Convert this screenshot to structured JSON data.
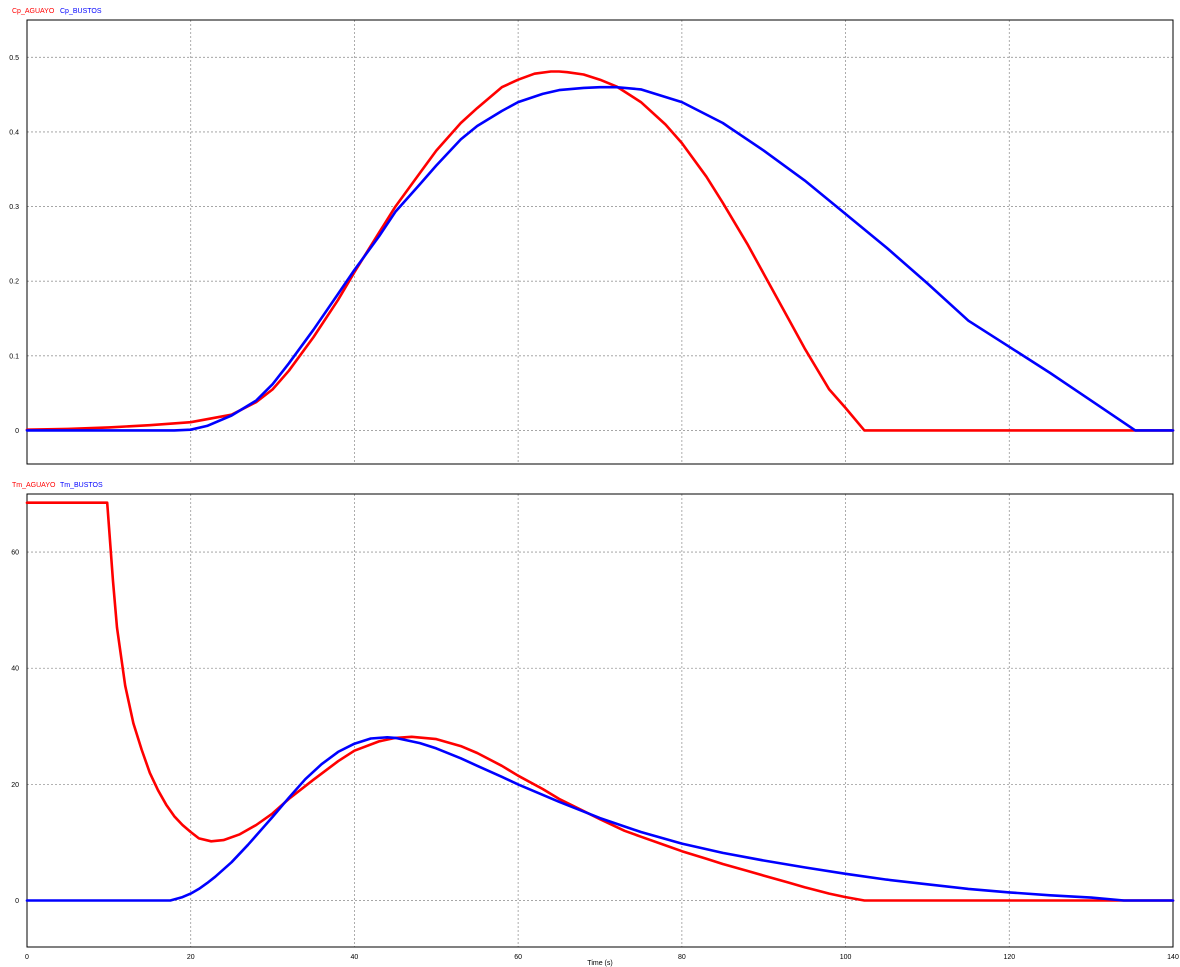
{
  "colors": {
    "red": "#ff0000",
    "blue": "#0000ff",
    "grid": "#999999",
    "frame": "#000000",
    "background": "#ffffff"
  },
  "chart_data": [
    {
      "type": "line",
      "legend": [
        "Cp_AGUAYO",
        "Cp_BUSTOS"
      ],
      "legend_placement": "top-left",
      "xlabel": "",
      "ylabel": "",
      "xlim": [
        0,
        140
      ],
      "ylim": [
        -0.045,
        0.55
      ],
      "x_ticks": [
        20,
        40,
        60,
        80,
        100,
        120
      ],
      "y_ticks": [
        0,
        0.1,
        0.2,
        0.3,
        0.4,
        0.5
      ],
      "y_tick_labels": [
        "0",
        "0.1",
        "0.2",
        "0.3",
        "0.4",
        "0.5"
      ],
      "grid": true,
      "series": [
        {
          "name": "Cp_AGUAYO",
          "color": "#ff0000",
          "x": [
            0,
            5,
            10,
            15,
            20,
            25,
            28,
            30,
            32,
            35,
            38,
            40,
            43,
            45,
            48,
            50,
            53,
            55,
            58,
            60,
            62,
            64,
            65,
            66,
            68,
            70,
            72,
            75,
            78,
            80,
            83,
            85,
            88,
            90,
            93,
            95,
            98,
            100,
            102.3,
            110,
            120,
            130,
            135,
            140
          ],
          "y": [
            0.001,
            0.002,
            0.004,
            0.007,
            0.011,
            0.021,
            0.038,
            0.055,
            0.08,
            0.125,
            0.175,
            0.212,
            0.265,
            0.3,
            0.345,
            0.375,
            0.412,
            0.432,
            0.46,
            0.47,
            0.478,
            0.481,
            0.481,
            0.48,
            0.477,
            0.47,
            0.461,
            0.44,
            0.41,
            0.385,
            0.34,
            0.305,
            0.25,
            0.21,
            0.15,
            0.11,
            0.055,
            0.03,
            0.0,
            0.0,
            0.0,
            0.0,
            0.0,
            0.0
          ]
        },
        {
          "name": "Cp_BUSTOS",
          "color": "#0000ff",
          "x": [
            0,
            5,
            10,
            15,
            18,
            20,
            22,
            25,
            28,
            30,
            32,
            35,
            38,
            40,
            43,
            45,
            48,
            50,
            53,
            55,
            58,
            60,
            63,
            65,
            68,
            70,
            72,
            75,
            80,
            85,
            90,
            95,
            100,
            105,
            110,
            115,
            120,
            125,
            130,
            135.4,
            140
          ],
          "y": [
            0.0,
            0.0,
            0.0,
            0.0,
            0.0,
            0.001,
            0.006,
            0.02,
            0.04,
            0.062,
            0.09,
            0.135,
            0.183,
            0.215,
            0.26,
            0.293,
            0.33,
            0.355,
            0.39,
            0.408,
            0.428,
            0.44,
            0.451,
            0.456,
            0.459,
            0.46,
            0.46,
            0.457,
            0.44,
            0.412,
            0.375,
            0.335,
            0.29,
            0.245,
            0.197,
            0.147,
            0.112,
            0.077,
            0.04,
            0.0,
            0.0
          ]
        }
      ]
    },
    {
      "type": "line",
      "legend": [
        "Tm_AGUAYO",
        "Tm_BUSTOS"
      ],
      "legend_placement": "top-left",
      "xlabel": "Time (s)",
      "ylabel": "",
      "xlim": [
        0,
        140
      ],
      "ylim": [
        -8,
        70
      ],
      "x_ticks": [
        0,
        20,
        40,
        60,
        80,
        100,
        120,
        140
      ],
      "y_ticks": [
        0,
        20,
        40,
        60
      ],
      "y_tick_labels": [
        "0",
        "20",
        "40",
        "60"
      ],
      "grid": true,
      "series": [
        {
          "name": "Tm_AGUAYO",
          "color": "#ff0000",
          "x": [
            0,
            5,
            9.8,
            10.5,
            11,
            12,
            13,
            14,
            15,
            16,
            17,
            18,
            19,
            20,
            21,
            22.5,
            24,
            26,
            28,
            30,
            32,
            35,
            38,
            40,
            43,
            45,
            47,
            50,
            53,
            55,
            58,
            60,
            63,
            65,
            68,
            70,
            73,
            75,
            78,
            80,
            83,
            85,
            88,
            90,
            93,
            95,
            98,
            100,
            102.3,
            110,
            120,
            130,
            135,
            140
          ],
          "y": [
            68.5,
            68.5,
            68.5,
            55,
            47,
            37,
            30.5,
            26,
            22,
            19,
            16.5,
            14.5,
            13,
            11.8,
            10.7,
            10.2,
            10.4,
            11.4,
            13,
            15,
            17.5,
            20.8,
            24,
            25.8,
            27.4,
            28,
            28.2,
            27.8,
            26.6,
            25.4,
            23.2,
            21.5,
            19.2,
            17.5,
            15.4,
            14,
            12,
            11,
            9.5,
            8.5,
            7.2,
            6.3,
            5.1,
            4.3,
            3.1,
            2.3,
            1.2,
            0.6,
            0.0,
            0.0,
            0.0,
            0.0,
            0.0,
            0.0
          ]
        },
        {
          "name": "Tm_BUSTOS",
          "color": "#0000ff",
          "x": [
            0,
            5,
            10,
            15,
            17.5,
            19,
            20,
            21,
            22,
            23,
            25,
            27,
            29,
            30,
            32,
            34,
            36,
            38,
            40,
            42,
            44,
            45,
            48,
            50,
            53,
            55,
            58,
            60,
            65,
            70,
            75,
            80,
            85,
            90,
            95,
            100,
            105,
            110,
            115,
            120,
            125,
            130,
            134,
            140
          ],
          "y": [
            0.0,
            0.0,
            0.0,
            0.0,
            0.0,
            0.6,
            1.2,
            2.0,
            3.0,
            4.1,
            6.6,
            9.6,
            12.8,
            14.4,
            17.7,
            20.9,
            23.5,
            25.6,
            27,
            27.9,
            28.1,
            28,
            27.1,
            26.2,
            24.5,
            23.2,
            21.3,
            20,
            17,
            14.2,
            11.8,
            9.8,
            8.2,
            6.9,
            5.7,
            4.6,
            3.6,
            2.8,
            2.0,
            1.4,
            0.9,
            0.5,
            0.0,
            0.0
          ]
        }
      ]
    }
  ]
}
